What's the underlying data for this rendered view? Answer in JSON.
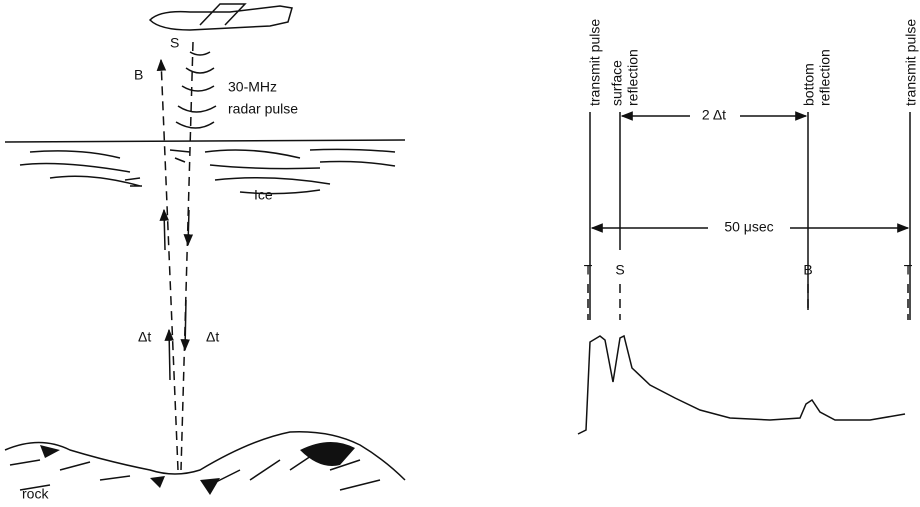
{
  "left": {
    "surface_label": "S",
    "bottom_label": "B",
    "pulse_freq": "30-MHz",
    "pulse_label": "radar pulse",
    "ice_label": "Ice",
    "delta_up": "Δt",
    "delta_down": "Δt",
    "rock_label": "rock"
  },
  "right": {
    "labels": [
      "transmit pulse",
      "surface",
      "reflection",
      "bottom",
      "reflection",
      "transmit pulse"
    ],
    "interval": "2 Δt",
    "period": "50 μsec",
    "markers": [
      "T",
      "S",
      "B",
      "T"
    ]
  }
}
